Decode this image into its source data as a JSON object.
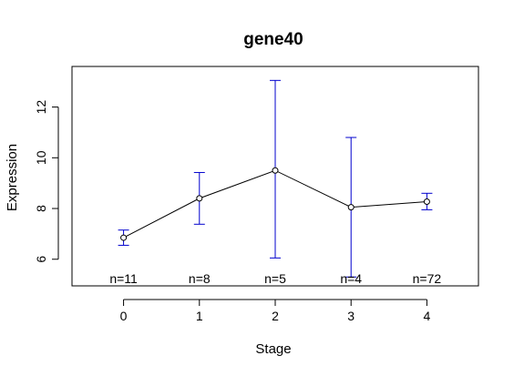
{
  "chart_data": {
    "type": "line",
    "title": "gene40",
    "xlabel": "Stage",
    "ylabel": "Expression",
    "x": [
      0,
      1,
      2,
      3,
      4
    ],
    "x_ticks": [
      "0",
      "1",
      "2",
      "3",
      "4"
    ],
    "y_ticks": [
      "6",
      "8",
      "10",
      "12"
    ],
    "xlim": [
      -0.68,
      4.68
    ],
    "ylim": [
      4.95,
      13.6
    ],
    "series": [
      {
        "values": [
          6.85,
          8.4,
          9.5,
          8.05,
          8.27
        ],
        "error_low": [
          6.55,
          7.38,
          6.05,
          5.3,
          7.95
        ],
        "error_high": [
          7.15,
          9.42,
          13.05,
          10.8,
          8.6
        ],
        "line_color": "#000000",
        "error_color": "#0000cd"
      }
    ],
    "n_labels": [
      "n=11",
      "n=8",
      "n=5",
      "n=4",
      "n=72"
    ],
    "grid": false,
    "legend": "none"
  }
}
